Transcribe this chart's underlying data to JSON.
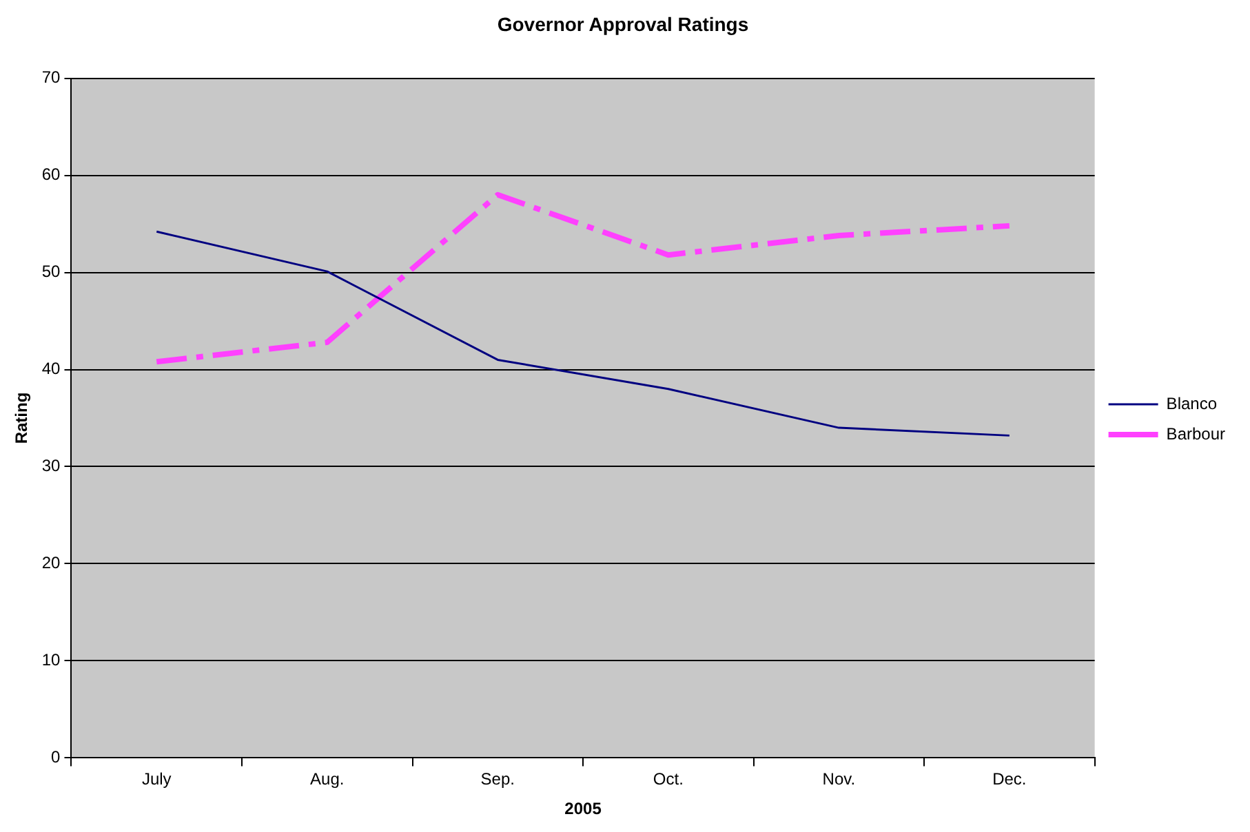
{
  "chart_data": {
    "type": "line",
    "title": "Governor Approval Ratings",
    "xlabel": "2005",
    "ylabel": "Rating",
    "categories": [
      "July",
      "Aug.",
      "Sep.",
      "Oct.",
      "Nov.",
      "Dec."
    ],
    "series": [
      {
        "name": "Blanco",
        "color": "#000080",
        "values": [
          54.2,
          50.1,
          41,
          38,
          34,
          33.2
        ],
        "line_style": "solid"
      },
      {
        "name": "Barbour",
        "color": "#ff40ff",
        "values": [
          40.8,
          42.8,
          58,
          51.8,
          53.8,
          54.8
        ],
        "line_style": "dashed"
      }
    ],
    "ylim": [
      0,
      70
    ],
    "yticks": [
      0,
      10,
      20,
      30,
      40,
      50,
      60,
      70
    ],
    "grid": "y",
    "legend": "right",
    "marker": "none"
  }
}
